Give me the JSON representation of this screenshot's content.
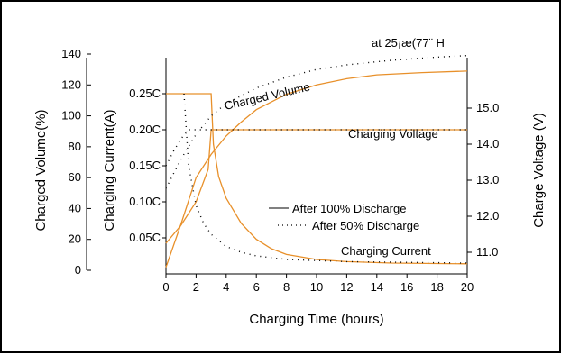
{
  "chart_data": {
    "type": "line",
    "title": "",
    "note": "at 25¡æ(77¨ H",
    "xlabel": "Charging Time (hours)",
    "xlim": [
      0,
      20
    ],
    "x_ticks": [
      0,
      2,
      4,
      6,
      8,
      10,
      12,
      14,
      16,
      18,
      20
    ],
    "left_axis_1": {
      "label": "Charged Volume(%)",
      "ylim": [
        0,
        140
      ],
      "ticks": [
        0,
        20,
        40,
        60,
        80,
        100,
        120,
        140
      ]
    },
    "left_axis_2": {
      "label": "Charging Current(A)",
      "ylim": [
        0,
        0.3
      ],
      "ticks": [
        "0.05C",
        "0.10C",
        "0.15C",
        "0.20C",
        "0.25C"
      ],
      "tick_values": [
        0.05,
        0.1,
        0.15,
        0.2,
        0.25
      ]
    },
    "right_axis": {
      "label": "Charge Voltage (V)",
      "ylim": [
        10.4,
        16.4
      ],
      "ticks": [
        "11.0",
        "12.0",
        "13.0",
        "14.0",
        "15.0"
      ],
      "tick_values": [
        11.0,
        12.0,
        13.0,
        14.0,
        15.0
      ]
    },
    "legend": {
      "position": "center-right",
      "entries": [
        {
          "label": "After 100% Discharge",
          "style": "solid"
        },
        {
          "label": "After 50% Discharge",
          "style": "dotted"
        }
      ]
    },
    "annotations": {
      "charged_volume": "Charged Volume",
      "charging_voltage": "Charging Voltage",
      "charging_current": "Charging Current"
    },
    "colors": {
      "curve_100": "#e8902a",
      "curve_50": "#000000",
      "frame": "#000000"
    },
    "series": [
      {
        "axis": "right",
        "style": "solid",
        "points": [
          [
            0,
            11.25
          ],
          [
            1,
            11.75
          ],
          [
            2,
            12.4
          ],
          [
            2.8,
            13.3
          ],
          [
            3,
            14.4
          ],
          [
            4,
            14.4
          ],
          [
            20,
            14.4
          ]
        ]
      },
      {
        "axis": "left_2",
        "style": "solid",
        "points": [
          [
            0,
            0.25
          ],
          [
            3,
            0.25
          ],
          [
            3.15,
            0.18
          ],
          [
            3.5,
            0.135
          ],
          [
            4,
            0.105
          ],
          [
            5,
            0.07
          ],
          [
            6,
            0.048
          ],
          [
            7,
            0.035
          ],
          [
            8,
            0.027
          ],
          [
            10,
            0.02
          ],
          [
            12,
            0.017
          ],
          [
            15,
            0.015
          ],
          [
            20,
            0.014
          ]
        ]
      },
      {
        "axis": "left_1",
        "style": "solid",
        "points": [
          [
            0,
            2
          ],
          [
            1,
            30
          ],
          [
            2,
            60
          ],
          [
            3,
            75
          ],
          [
            4,
            87
          ],
          [
            5,
            96
          ],
          [
            6,
            104
          ],
          [
            8,
            114
          ],
          [
            10,
            120
          ],
          [
            12,
            124
          ],
          [
            14,
            126.5
          ],
          [
            17,
            128
          ],
          [
            20,
            129
          ]
        ]
      },
      {
        "axis": "left_2",
        "style": "dotted",
        "points": [
          [
            1.2,
            0.25
          ],
          [
            1.5,
            0.15
          ],
          [
            2,
            0.095
          ],
          [
            2.5,
            0.07
          ],
          [
            3,
            0.055
          ],
          [
            4,
            0.038
          ],
          [
            5,
            0.03
          ],
          [
            6,
            0.025
          ],
          [
            8,
            0.02
          ],
          [
            12,
            0.017
          ],
          [
            20,
            0.015
          ]
        ]
      },
      {
        "axis": "left_1",
        "style": "dotted",
        "points": [
          [
            0,
            53
          ],
          [
            1,
            72
          ],
          [
            2,
            88
          ],
          [
            3,
            100
          ],
          [
            4,
            108
          ],
          [
            6,
            118
          ],
          [
            8,
            125
          ],
          [
            10,
            130
          ],
          [
            12,
            133
          ],
          [
            15,
            136
          ],
          [
            18,
            138
          ],
          [
            20,
            139
          ]
        ]
      },
      {
        "axis": "right",
        "style": "dotted",
        "points": [
          [
            0,
            13.4
          ],
          [
            0.5,
            13.8
          ],
          [
            1,
            14.15
          ],
          [
            1.5,
            14.4
          ],
          [
            20,
            14.4
          ]
        ]
      }
    ]
  }
}
